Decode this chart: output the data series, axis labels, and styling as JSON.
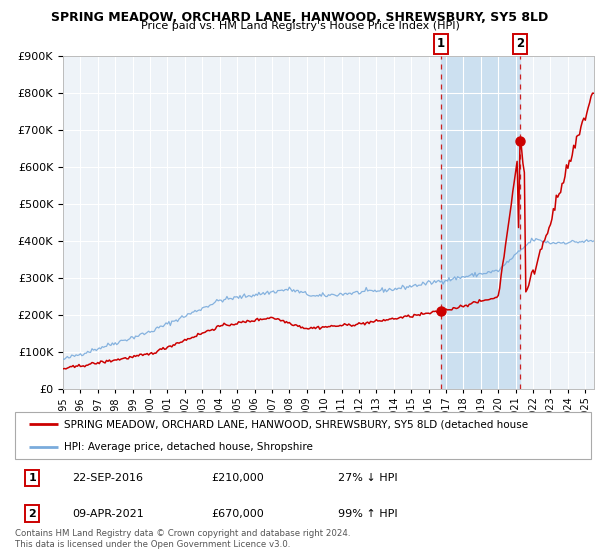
{
  "title": "SPRING MEADOW, ORCHARD LANE, HANWOOD, SHREWSBURY, SY5 8LD",
  "subtitle": "Price paid vs. HM Land Registry's House Price Index (HPI)",
  "hpi_color": "#7aabdc",
  "price_color": "#cc0000",
  "point1_date_label": "22-SEP-2016",
  "point1_price": 210000,
  "point1_label": "27% ↓ HPI",
  "point2_date_label": "09-APR-2021",
  "point2_price": 670000,
  "point2_label": "99% ↑ HPI",
  "legend_label_red": "SPRING MEADOW, ORCHARD LANE, HANWOOD, SHREWSBURY, SY5 8LD (detached house",
  "legend_label_blue": "HPI: Average price, detached house, Shropshire",
  "footer": "Contains HM Land Registry data © Crown copyright and database right 2024.\nThis data is licensed under the Open Government Licence v3.0.",
  "ylim": [
    0,
    900000
  ],
  "plot_bg": "#eef3f8",
  "grid_color": "#ffffff",
  "highlight_color": "#cce0f0",
  "p1_t": 2016.708,
  "p2_t": 2021.25
}
